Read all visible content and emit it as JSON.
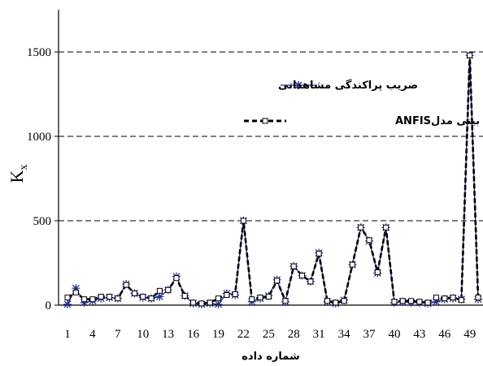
{
  "chart_data": {
    "type": "line",
    "xlabel": "شماره داده",
    "ylabel": "K",
    "ylabel_sub": "x",
    "ylim": [
      0,
      1750
    ],
    "yticks": [
      0,
      500,
      1000,
      1500
    ],
    "ytick_labels": [
      "0",
      "500",
      "1000",
      "1500"
    ],
    "x": [
      1,
      2,
      3,
      4,
      5,
      6,
      7,
      8,
      9,
      10,
      11,
      12,
      13,
      14,
      15,
      16,
      17,
      18,
      19,
      20,
      21,
      22,
      23,
      24,
      25,
      26,
      27,
      28,
      29,
      30,
      31,
      32,
      33,
      34,
      35,
      36,
      37,
      38,
      39,
      40,
      41,
      42,
      43,
      44,
      45,
      46,
      47,
      48,
      49,
      50
    ],
    "xticks": [
      1,
      4,
      7,
      10,
      13,
      16,
      19,
      22,
      25,
      28,
      31,
      34,
      37,
      40,
      43,
      46,
      49
    ],
    "xtick_labels": [
      "1",
      "4",
      "7",
      "10",
      "13",
      "16",
      "19",
      "22",
      "25",
      "28",
      "31",
      "34",
      "37",
      "40",
      "43",
      "46",
      "49"
    ],
    "grid": "horizontal dashed",
    "legend_position": "upper-left",
    "series": [
      {
        "name": "ضریب پراکندگی مشاهداتی",
        "color": "#1f2a8a",
        "marker": "star",
        "values": [
          5,
          100,
          15,
          25,
          40,
          45,
          40,
          125,
          70,
          45,
          40,
          50,
          90,
          170,
          55,
          10,
          5,
          10,
          5,
          70,
          60,
          500,
          20,
          40,
          55,
          150,
          20,
          230,
          175,
          140,
          310,
          20,
          10,
          30,
          240,
          460,
          380,
          190,
          460,
          15,
          20,
          15,
          15,
          10,
          20,
          35,
          40,
          35,
          1480,
          35
        ]
      },
      {
        "name": "ضریب پراکندگی پیش بینی مدلANFIS",
        "color": "#000000",
        "marker": "square",
        "values": [
          45,
          75,
          35,
          35,
          50,
          50,
          40,
          120,
          70,
          50,
          40,
          85,
          90,
          160,
          55,
          15,
          10,
          15,
          40,
          60,
          65,
          500,
          35,
          45,
          50,
          145,
          25,
          230,
          175,
          140,
          305,
          25,
          15,
          25,
          240,
          460,
          385,
          195,
          460,
          20,
          25,
          25,
          20,
          15,
          45,
          40,
          45,
          30,
          1480,
          45
        ]
      }
    ]
  }
}
